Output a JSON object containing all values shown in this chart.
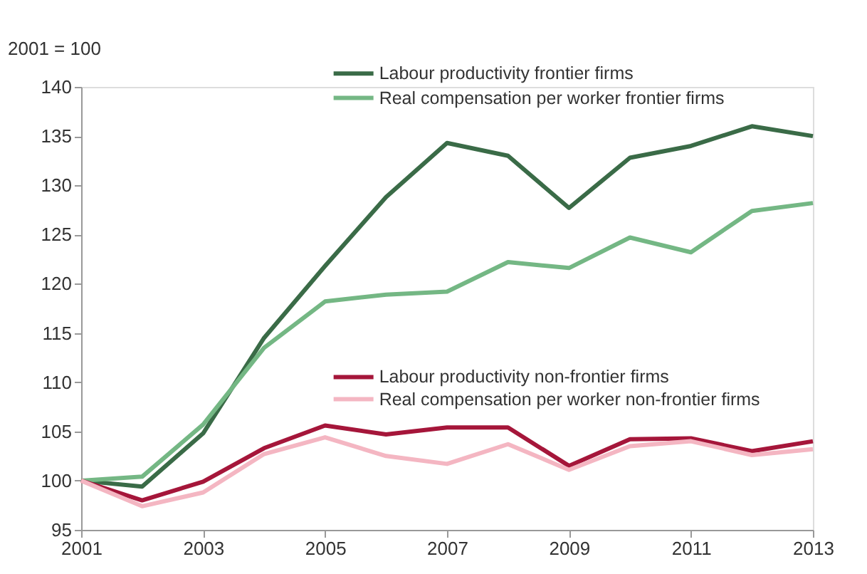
{
  "chart_data": {
    "type": "line",
    "ylabel": "2001 = 100",
    "x": [
      2001,
      2002,
      2003,
      2004,
      2005,
      2006,
      2007,
      2008,
      2009,
      2010,
      2011,
      2012,
      2013
    ],
    "xlim": [
      2001,
      2013
    ],
    "xticks": [
      2001,
      2003,
      2005,
      2007,
      2009,
      2011,
      2013
    ],
    "ylim": [
      95,
      140
    ],
    "yticks": [
      95,
      100,
      105,
      110,
      115,
      120,
      125,
      130,
      135,
      140
    ],
    "grid": false,
    "legend": "top",
    "marker": "none",
    "line_style": "solid",
    "series": [
      {
        "name": "Labour productivity frontier firms",
        "color": "#3a6b47",
        "values": [
          100,
          99.4,
          104.8,
          114.5,
          121.8,
          128.8,
          134.3,
          133,
          127.7,
          132.8,
          134,
          136,
          135
        ]
      },
      {
        "name": "Real compensation per worker frontier firms",
        "color": "#74b784",
        "values": [
          100,
          100.4,
          105.7,
          113.5,
          118.2,
          118.9,
          119.2,
          122.2,
          121.6,
          124.7,
          123.2,
          127.4,
          128.2
        ]
      },
      {
        "name": "Labour productivity non-frontier firms",
        "color": "#a5163a",
        "values": [
          100,
          98,
          99.9,
          103.3,
          105.6,
          104.7,
          105.4,
          105.4,
          101.5,
          104.2,
          104.3,
          103,
          104
        ]
      },
      {
        "name": "Real compensation per worker non-frontier firms",
        "color": "#f4b6c2",
        "values": [
          100,
          97.4,
          98.8,
          102.7,
          104.4,
          102.5,
          101.7,
          103.7,
          101.1,
          103.5,
          104,
          102.6,
          103.2
        ]
      }
    ]
  }
}
